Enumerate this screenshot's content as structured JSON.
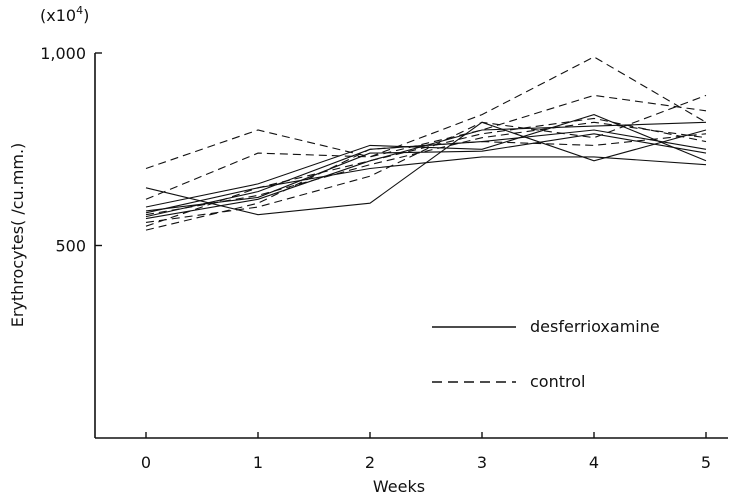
{
  "chart_data": {
    "type": "line",
    "title": "",
    "xlabel": "Weeks",
    "ylabel": "Erythrocytes( /cu.mm.)",
    "y_multiplier_label": "(x10",
    "y_multiplier_exp": "4",
    "y_multiplier_close": ")",
    "x": [
      0,
      1,
      2,
      3,
      4,
      5
    ],
    "x_tick_labels": [
      "0",
      "1",
      "2",
      "3",
      "4",
      "5"
    ],
    "y_tick_values": [
      500,
      1000
    ],
    "y_tick_labels": [
      "500",
      "1,000"
    ],
    "ylim": [
      0,
      1000
    ],
    "xlim": [
      0,
      5
    ],
    "grid": false,
    "legend_placement": "bottom-right",
    "legend": [
      {
        "label": "desferrioxamine",
        "style": "solid"
      },
      {
        "label": "control",
        "style": "dashed"
      }
    ],
    "series": [
      {
        "style": "solid",
        "values": [
          650,
          580,
          610,
          820,
          720,
          800
        ]
      },
      {
        "style": "solid",
        "values": [
          600,
          660,
          760,
          750,
          840,
          720
        ]
      },
      {
        "style": "solid",
        "values": [
          585,
          650,
          700,
          730,
          730,
          710
        ]
      },
      {
        "style": "solid",
        "values": [
          570,
          620,
          720,
          800,
          810,
          820
        ]
      },
      {
        "style": "solid",
        "values": [
          575,
          640,
          750,
          770,
          800,
          750
        ]
      },
      {
        "style": "solid",
        "values": [
          590,
          625,
          740,
          745,
          790,
          740
        ]
      },
      {
        "style": "dashed",
        "values": [
          700,
          800,
          730,
          840,
          990,
          820
        ]
      },
      {
        "style": "dashed",
        "values": [
          620,
          740,
          730,
          800,
          890,
          850
        ]
      },
      {
        "style": "dashed",
        "values": [
          560,
          600,
          680,
          820,
          780,
          890
        ]
      },
      {
        "style": "dashed",
        "values": [
          540,
          610,
          750,
          770,
          760,
          790
        ]
      },
      {
        "style": "dashed",
        "values": [
          550,
          650,
          720,
          790,
          830,
          770
        ]
      },
      {
        "style": "dashed",
        "values": [
          580,
          630,
          710,
          780,
          820,
          780
        ]
      }
    ],
    "colors": {
      "line": "#111111",
      "background": "#ffffff"
    }
  }
}
